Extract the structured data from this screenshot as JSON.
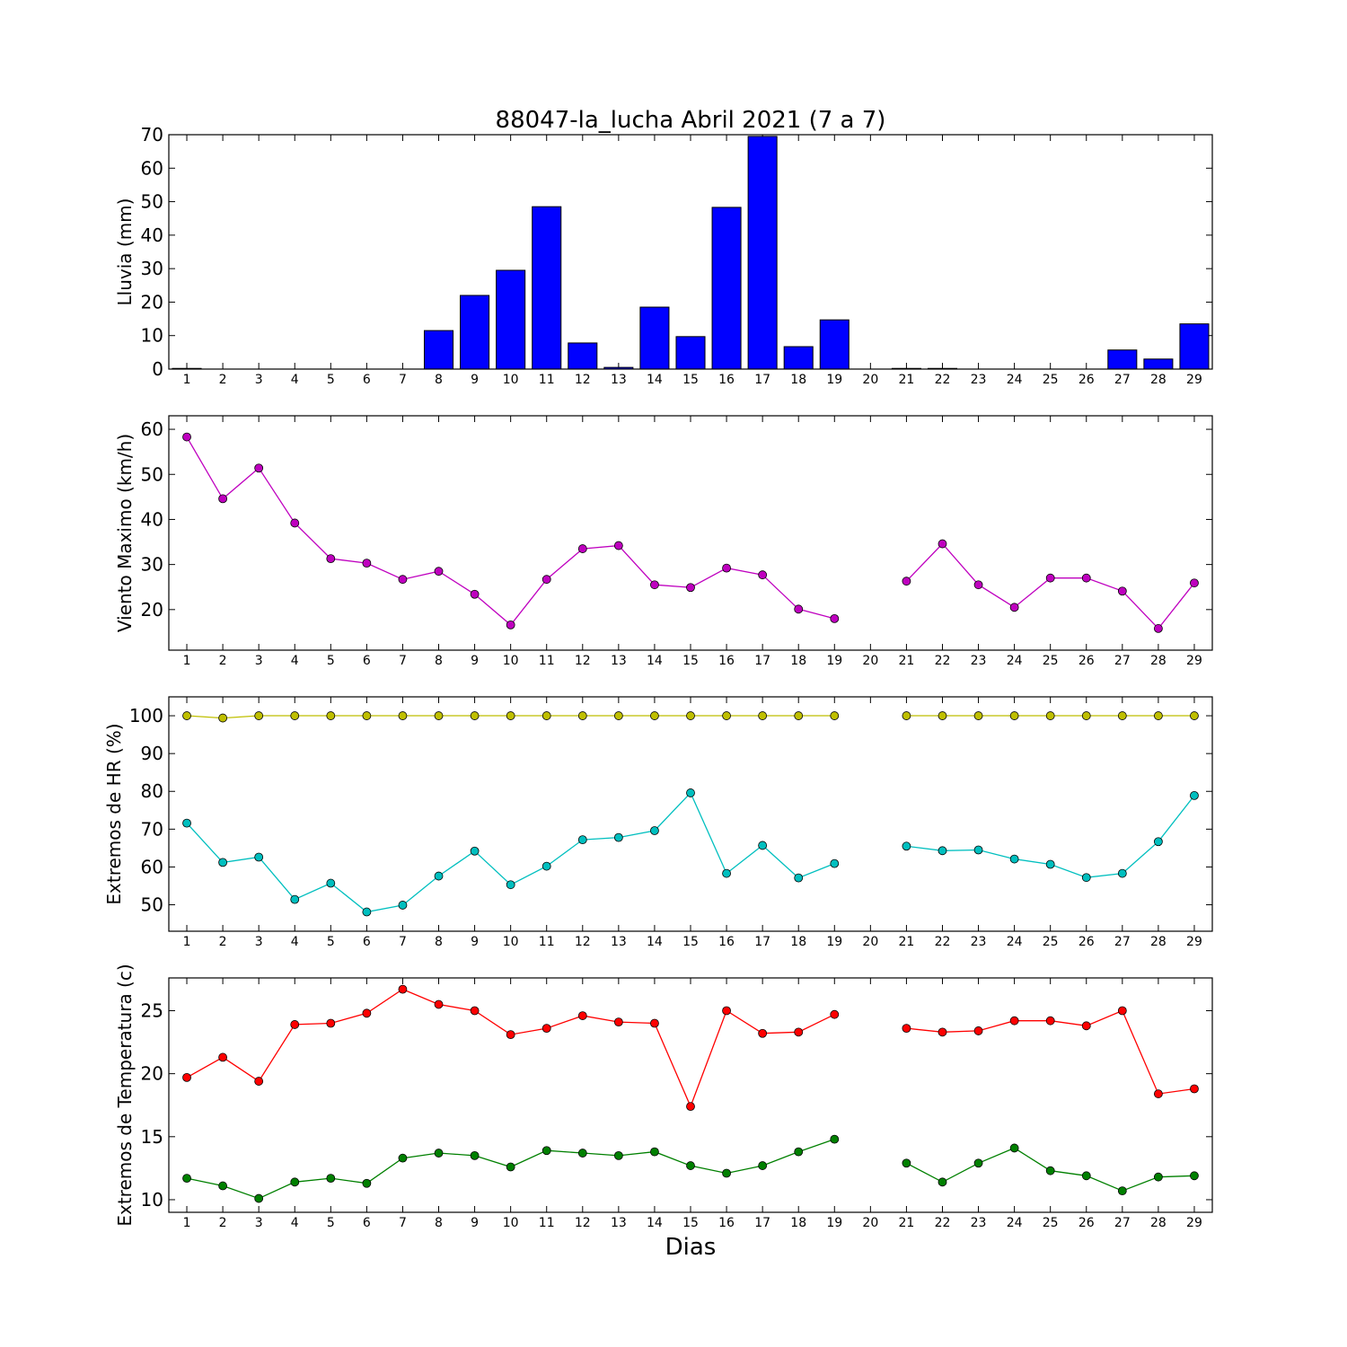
{
  "title": "88047-la_lucha Abril 2021  (7 a 7)",
  "xlabel": "Dias",
  "days": [
    1,
    2,
    3,
    4,
    5,
    6,
    7,
    8,
    9,
    10,
    11,
    12,
    13,
    14,
    15,
    16,
    17,
    18,
    19,
    20,
    21,
    22,
    23,
    24,
    25,
    26,
    27,
    28,
    29
  ],
  "colors": {
    "rain": "#0000ff",
    "wind": "#bf00bf",
    "hr_max": "#bfbf00",
    "hr_min": "#00bfbf",
    "temp_max": "#ff0000",
    "temp_min": "#008000"
  },
  "chart_data": [
    {
      "type": "bar",
      "ylabel": "Lluvia (mm)",
      "ylim": [
        0,
        70
      ],
      "yticks": [
        0,
        10,
        20,
        30,
        40,
        50,
        60,
        70
      ],
      "series": [
        {
          "values": [
            0.2,
            0,
            0,
            0,
            0,
            0,
            0,
            11.5,
            22,
            29.5,
            48.5,
            7.8,
            0.5,
            18.5,
            9.7,
            48.3,
            69.5,
            6.7,
            14.7,
            0,
            0.2,
            0.2,
            0,
            0,
            0,
            0,
            5.7,
            3,
            13.5
          ]
        }
      ]
    },
    {
      "type": "line",
      "ylabel": "Viento Maximo (km/h)",
      "ylim": [
        11,
        63
      ],
      "yticks": [
        20,
        30,
        40,
        50,
        60
      ],
      "series": [
        {
          "values": [
            58.3,
            44.6,
            51.4,
            39.2,
            31.3,
            30.3,
            26.7,
            28.5,
            23.4,
            16.6,
            26.7,
            33.5,
            34.2,
            25.5,
            24.9,
            29.2,
            27.7,
            20.1,
            18.0,
            null,
            26.3,
            34.6,
            25.5,
            20.5,
            27.0,
            27.0,
            24.1,
            15.8,
            25.9
          ]
        }
      ]
    },
    {
      "type": "line",
      "ylabel": "Extremos de HR (%)",
      "ylim": [
        43,
        105
      ],
      "yticks": [
        50,
        60,
        70,
        80,
        90,
        100
      ],
      "series": [
        {
          "values": [
            100,
            99.4,
            100,
            100,
            100,
            100,
            100,
            100,
            100,
            100,
            100,
            100,
            100,
            100,
            100,
            100,
            100,
            100,
            100,
            null,
            100,
            100,
            100,
            100,
            100,
            100,
            100,
            100,
            100
          ]
        },
        {
          "values": [
            71.6,
            61.2,
            62.6,
            51.4,
            55.7,
            48.1,
            49.9,
            57.6,
            64.2,
            55.3,
            60.2,
            67.2,
            67.8,
            69.6,
            79.6,
            58.3,
            65.7,
            57.1,
            60.9,
            null,
            65.5,
            64.3,
            64.5,
            62.1,
            60.7,
            57.2,
            58.3,
            66.7,
            78.9
          ]
        }
      ]
    },
    {
      "type": "line",
      "ylabel": "Extremos de Temperatura (c)",
      "ylim": [
        9,
        27.6
      ],
      "yticks": [
        10,
        15,
        20,
        25
      ],
      "series": [
        {
          "values": [
            19.7,
            21.3,
            19.4,
            23.9,
            24.0,
            24.8,
            26.7,
            25.5,
            25.0,
            23.1,
            23.6,
            24.6,
            24.1,
            24.0,
            17.4,
            25.0,
            23.2,
            23.3,
            24.7,
            null,
            23.6,
            23.3,
            23.4,
            24.2,
            24.2,
            23.8,
            25.0,
            18.4,
            18.8
          ]
        },
        {
          "values": [
            11.7,
            11.1,
            10.1,
            11.4,
            11.7,
            11.3,
            13.3,
            13.7,
            13.5,
            12.6,
            13.9,
            13.7,
            13.5,
            13.8,
            12.7,
            12.1,
            12.7,
            13.8,
            14.8,
            null,
            12.9,
            11.4,
            12.9,
            14.1,
            12.3,
            11.9,
            10.7,
            11.8,
            11.9
          ]
        }
      ]
    }
  ]
}
